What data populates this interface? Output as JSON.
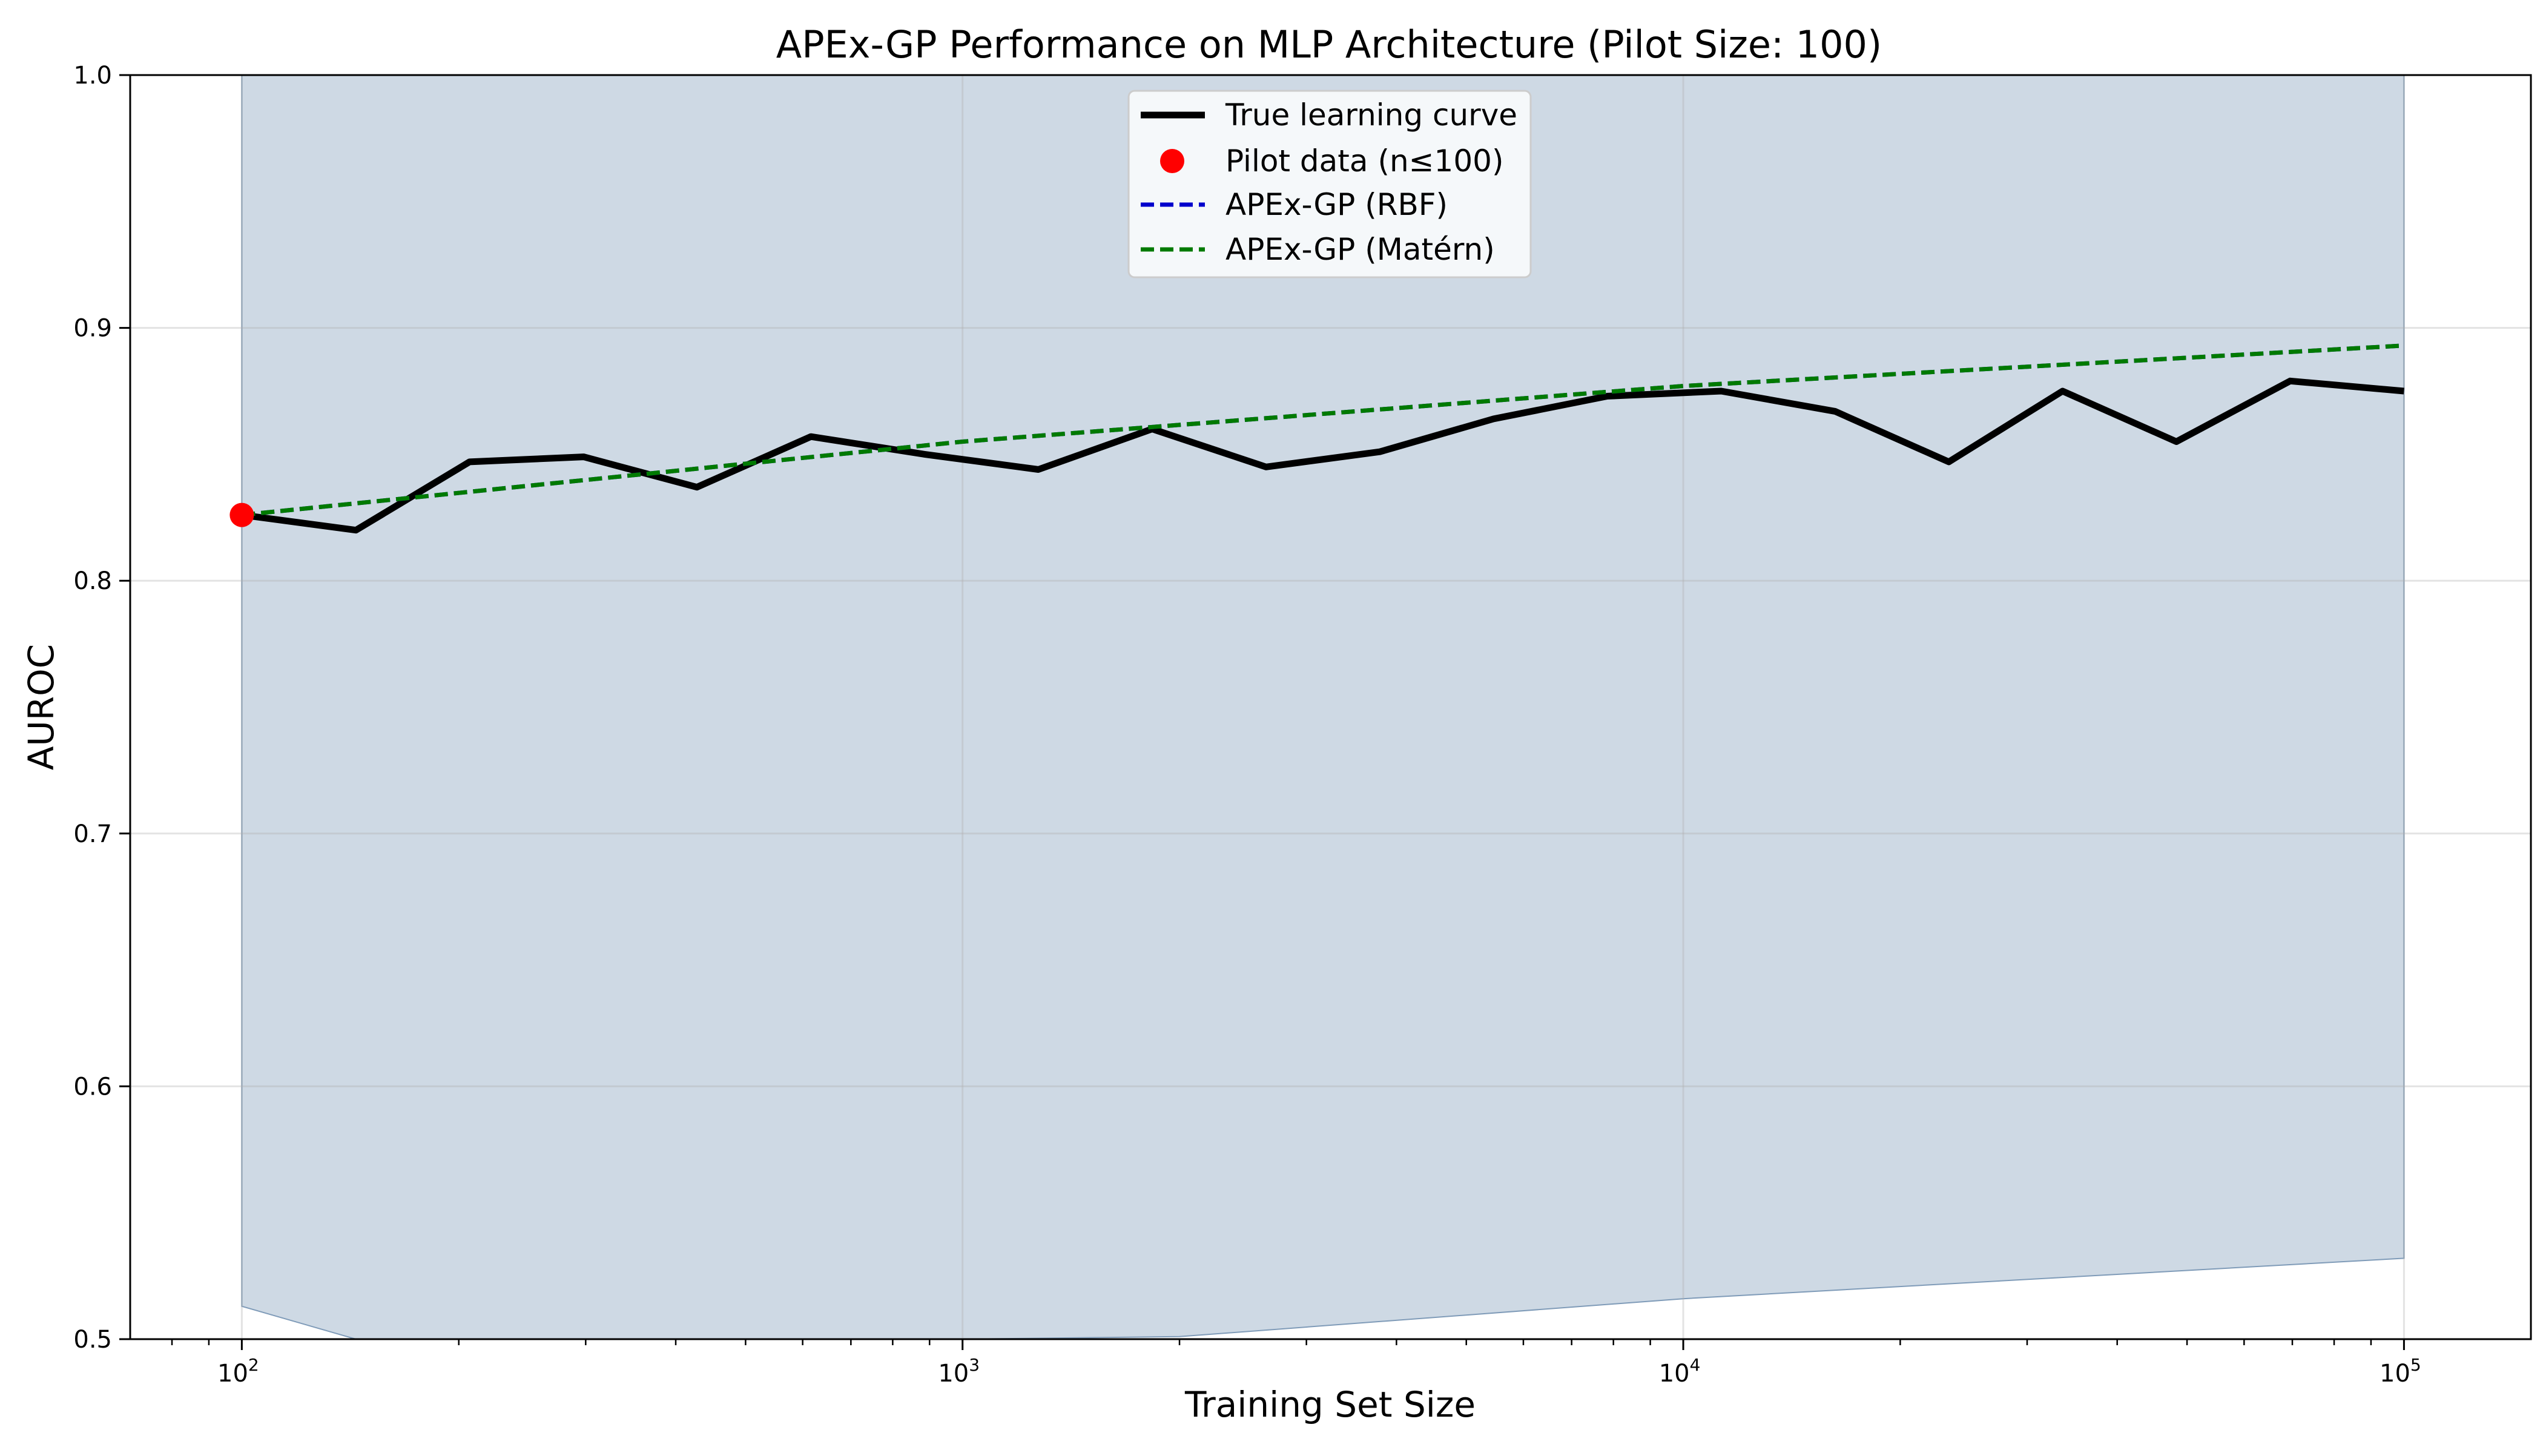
{
  "chart_data": {
    "type": "line",
    "title": "APEx-GP Performance on MLP Architecture (Pilot Size: 100)",
    "xlabel": "Training Set Size",
    "ylabel": "AUROC",
    "xscale": "log",
    "xlim": [
      70,
      150000
    ],
    "ylim": [
      0.5,
      1.0
    ],
    "grid": true,
    "legend_position": "top-center",
    "x_ticks": [
      {
        "value": 100,
        "base": "10",
        "exp": "2"
      },
      {
        "value": 1000,
        "base": "10",
        "exp": "3"
      },
      {
        "value": 10000,
        "base": "10",
        "exp": "4"
      },
      {
        "value": 100000,
        "base": "10",
        "exp": "5"
      }
    ],
    "y_ticks": [
      "0.5",
      "0.6",
      "0.7",
      "0.8",
      "0.9",
      "1.0"
    ],
    "series": [
      {
        "name": "True learning curve",
        "color": "#000000",
        "style": "solid",
        "x": [
          100,
          144,
          207,
          298,
          428,
          616,
          886,
          1274,
          1833,
          2637,
          3793,
          5456,
          7848,
          11288,
          16238,
          23357,
          33598,
          48329,
          69519,
          100000
        ],
        "y": [
          0.826,
          0.82,
          0.847,
          0.849,
          0.837,
          0.857,
          0.85,
          0.844,
          0.86,
          0.845,
          0.851,
          0.864,
          0.873,
          0.875,
          0.867,
          0.847,
          0.875,
          0.855,
          0.879,
          0.875
        ]
      },
      {
        "name": "APEx-GP (RBF)",
        "color": "#0000cc",
        "style": "dashed",
        "x": [
          100,
          1000,
          10000,
          100000
        ],
        "y": [
          0.826,
          0.855,
          0.877,
          0.893
        ]
      },
      {
        "name": "APEx-GP (Matérn)",
        "color": "#007a00",
        "style": "dashed",
        "x": [
          100,
          1000,
          10000,
          100000
        ],
        "y": [
          0.826,
          0.855,
          0.877,
          0.893
        ]
      }
    ],
    "pilot_data": {
      "name": "Pilot data (n≤100)",
      "color": "#ff0000",
      "points": [
        {
          "x": 100,
          "y": 0.826
        }
      ]
    },
    "confidence_band": {
      "color": "#7f9bb8",
      "x": [
        100,
        144,
        200,
        1000,
        2000,
        10000,
        100000
      ],
      "upper": [
        1.0,
        1.0,
        1.0,
        1.0,
        1.0,
        1.0,
        1.0
      ],
      "lower": [
        0.513,
        0.5,
        0.5,
        0.5,
        0.501,
        0.516,
        0.532
      ]
    }
  }
}
